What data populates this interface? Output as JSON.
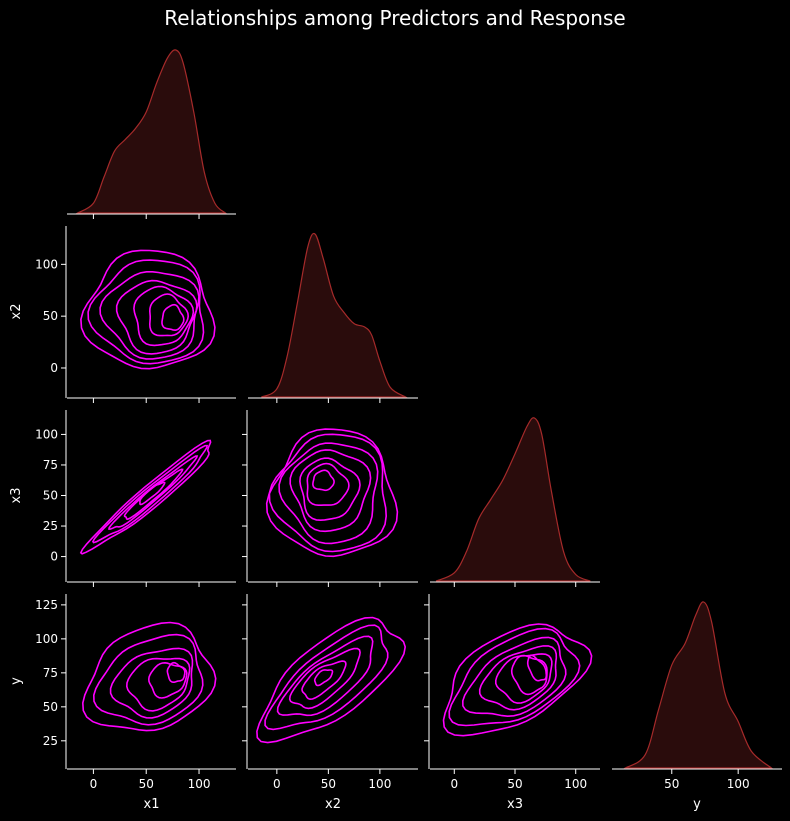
{
  "chart_data": {
    "type": "pairplot",
    "title": "Relationships among Predictors and Response",
    "variables": [
      "x1",
      "x2",
      "x3",
      "y"
    ],
    "colors": {
      "background": "#000000",
      "kde_fill": "#2a0c0c",
      "kde_line": "#a52a2a",
      "contour": "#ff00ff",
      "axis": "#ffffff"
    },
    "axes": {
      "x1": {
        "range": [
          -25,
          135
        ],
        "ticks": [
          0,
          50,
          100
        ]
      },
      "x2": {
        "range": [
          -28,
          137
        ],
        "ticks": [
          0,
          50,
          100
        ]
      },
      "x3": {
        "range": [
          -20,
          120
        ],
        "ticks": [
          0,
          25,
          50,
          75,
          100
        ]
      },
      "y": {
        "range": [
          5,
          133
        ],
        "ticks": [
          25,
          50,
          75,
          100,
          125
        ]
      }
    },
    "x_tick_labels": {
      "x1": [
        0,
        50,
        100
      ],
      "x2": [
        0,
        50,
        100
      ],
      "x3": [
        0,
        50,
        100
      ],
      "y": [
        50,
        100
      ]
    },
    "diagonal_kde": {
      "x1": {
        "x": [
          -15,
          0,
          10,
          20,
          30,
          40,
          50,
          60,
          70,
          78,
          85,
          95,
          105,
          115,
          125
        ],
        "density": [
          0.0,
          0.06,
          0.22,
          0.38,
          0.45,
          0.52,
          0.62,
          0.8,
          0.95,
          1.0,
          0.92,
          0.62,
          0.25,
          0.06,
          0.0
        ]
      },
      "x2": {
        "x": [
          -15,
          0,
          10,
          20,
          30,
          37,
          45,
          55,
          65,
          75,
          85,
          92,
          100,
          110,
          125
        ],
        "density": [
          0.0,
          0.05,
          0.25,
          0.58,
          0.92,
          1.0,
          0.85,
          0.62,
          0.52,
          0.45,
          0.43,
          0.38,
          0.22,
          0.06,
          0.0
        ]
      },
      "x3": {
        "x": [
          -15,
          0,
          10,
          20,
          30,
          40,
          50,
          60,
          66,
          72,
          80,
          90,
          100,
          112
        ],
        "density": [
          0.0,
          0.05,
          0.18,
          0.38,
          0.5,
          0.62,
          0.78,
          0.95,
          1.0,
          0.9,
          0.55,
          0.18,
          0.04,
          0.0
        ]
      },
      "y": {
        "x": [
          15,
          30,
          40,
          50,
          60,
          68,
          74,
          80,
          90,
          100,
          110,
          125
        ],
        "density": [
          0.0,
          0.08,
          0.35,
          0.62,
          0.75,
          0.92,
          1.0,
          0.88,
          0.45,
          0.28,
          0.1,
          0.0
        ]
      }
    },
    "kde_contours": {
      "x2_vs_x1": [
        {
          "cx": 75,
          "cy": 48,
          "rx": 10,
          "ry": 12
        },
        {
          "cx": 70,
          "cy": 50,
          "rx": 18,
          "ry": 20
        },
        {
          "cx": 65,
          "cy": 50,
          "rx": 27,
          "ry": 28
        },
        {
          "cx": 60,
          "cy": 50,
          "rx": 36,
          "ry": 35
        },
        {
          "cx": 56,
          "cy": 52,
          "rx": 45,
          "ry": 42
        },
        {
          "cx": 54,
          "cy": 54,
          "rx": 53,
          "ry": 50
        },
        {
          "cx": 53,
          "cy": 55,
          "rx": 60,
          "ry": 57
        }
      ],
      "x3_vs_x1": [
        {
          "cx": 55,
          "cy": 52,
          "rx": 15,
          "ry": 3,
          "angle": 40
        },
        {
          "cx": 55,
          "cy": 50,
          "rx": 35,
          "ry": 4,
          "angle": 40
        },
        {
          "cx": 55,
          "cy": 50,
          "rx": 52,
          "ry": 5,
          "angle": 40
        },
        {
          "cx": 55,
          "cy": 50,
          "rx": 67,
          "ry": 7,
          "angle": 40
        },
        {
          "cx": 55,
          "cy": 50,
          "rx": 78,
          "ry": 9,
          "angle": 40
        }
      ],
      "y_vs_x1": [
        {
          "cx": 78,
          "cy": 75,
          "rx": 8,
          "ry": 7,
          "angle": 25
        },
        {
          "cx": 70,
          "cy": 70,
          "rx": 18,
          "ry": 12,
          "angle": 25
        },
        {
          "cx": 62,
          "cy": 68,
          "rx": 30,
          "ry": 18,
          "angle": 25
        },
        {
          "cx": 58,
          "cy": 68,
          "rx": 40,
          "ry": 23,
          "angle": 25
        },
        {
          "cx": 55,
          "cy": 69,
          "rx": 52,
          "ry": 30,
          "angle": 25
        },
        {
          "cx": 53,
          "cy": 70,
          "rx": 62,
          "ry": 37,
          "angle": 25
        }
      ],
      "x3_vs_x2": [
        {
          "cx": 45,
          "cy": 62,
          "rx": 10,
          "ry": 8
        },
        {
          "cx": 48,
          "cy": 58,
          "rx": 20,
          "ry": 17
        },
        {
          "cx": 50,
          "cy": 55,
          "rx": 28,
          "ry": 25
        },
        {
          "cx": 52,
          "cy": 55,
          "rx": 37,
          "ry": 33
        },
        {
          "cx": 53,
          "cy": 53,
          "rx": 46,
          "ry": 41
        },
        {
          "cx": 54,
          "cy": 52,
          "rx": 55,
          "ry": 48
        },
        {
          "cx": 55,
          "cy": 51,
          "rx": 60,
          "ry": 52
        }
      ],
      "y_vs_x2": [
        {
          "cx": 45,
          "cy": 72,
          "rx": 10,
          "ry": 4,
          "angle": 38
        },
        {
          "cx": 45,
          "cy": 70,
          "rx": 25,
          "ry": 8,
          "angle": 38
        },
        {
          "cx": 47,
          "cy": 70,
          "rx": 40,
          "ry": 12,
          "angle": 38
        },
        {
          "cx": 50,
          "cy": 70,
          "rx": 55,
          "ry": 16,
          "angle": 38
        },
        {
          "cx": 52,
          "cy": 70,
          "rx": 70,
          "ry": 21,
          "angle": 38
        },
        {
          "cx": 53,
          "cy": 70,
          "rx": 82,
          "ry": 27,
          "angle": 38
        }
      ],
      "y_vs_x3": [
        {
          "cx": 68,
          "cy": 78,
          "rx": 6,
          "ry": 10,
          "angle": 30
        },
        {
          "cx": 62,
          "cy": 74,
          "rx": 14,
          "ry": 14,
          "angle": 30
        },
        {
          "cx": 58,
          "cy": 72,
          "rx": 24,
          "ry": 16,
          "angle": 30
        },
        {
          "cx": 55,
          "cy": 71,
          "rx": 34,
          "ry": 19,
          "angle": 30
        },
        {
          "cx": 52,
          "cy": 70,
          "rx": 45,
          "ry": 23,
          "angle": 30
        },
        {
          "cx": 50,
          "cy": 70,
          "rx": 56,
          "ry": 28,
          "angle": 30
        },
        {
          "cx": 49,
          "cy": 70,
          "rx": 64,
          "ry": 32,
          "angle": 30
        }
      ]
    }
  }
}
